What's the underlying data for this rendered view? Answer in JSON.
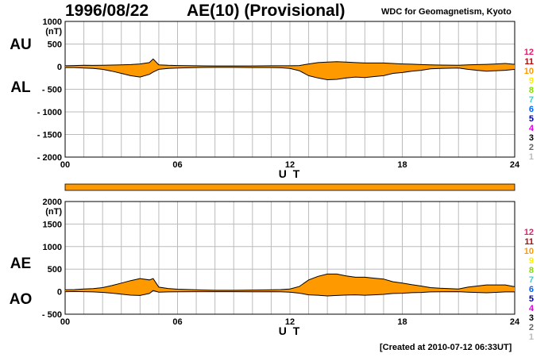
{
  "header": {
    "date": "1996/08/22",
    "title": "AE(10) (Provisional)",
    "credit": "WDC for Geomagnetism, Kyoto",
    "created": "[Created at 2010-07-12 06:33UT]"
  },
  "legend_levels": [
    "12",
    "11",
    "10",
    "9",
    "8",
    "7",
    "6",
    "5",
    "4",
    "3",
    "2",
    "1"
  ],
  "legend_colors": [
    "#e0206a",
    "#cc0000",
    "#ff9900",
    "#ffee00",
    "#88dd00",
    "#44cccc",
    "#0066ff",
    "#0000aa",
    "#dd00dd",
    "#000000",
    "#666666",
    "#bbbbbb"
  ],
  "colors": {
    "fill": "#ff9900",
    "line": "#000000",
    "grid": "#bbbbbb"
  },
  "chart_data": [
    {
      "type": "area",
      "panel": "top",
      "left_labels": [
        "AU",
        "AL"
      ],
      "xlabel": "U T",
      "yunit": "(nT)",
      "xlim": [
        0,
        24
      ],
      "ylim": [
        -2000,
        1000
      ],
      "xticks": [
        0,
        6,
        12,
        18,
        24
      ],
      "xtick_labels": [
        "00",
        "06",
        "12",
        "18",
        "24"
      ],
      "yticks": [
        1000,
        500,
        0,
        -500,
        -1000,
        -1500,
        -2000
      ],
      "ytick_labels": [
        "1000",
        "500",
        "0",
        "- 500",
        "- 1000",
        "- 1500",
        "- 2000"
      ],
      "x": [
        0,
        0.5,
        1,
        1.5,
        2,
        2.5,
        3,
        3.5,
        4,
        4.5,
        4.7,
        5,
        5.5,
        6,
        7,
        8,
        9,
        10,
        11,
        11.5,
        12,
        12.5,
        13,
        13.5,
        14,
        14.5,
        15,
        15.5,
        16,
        16.5,
        17,
        17.5,
        18,
        18.5,
        19,
        19.5,
        20,
        21,
        21.5,
        22,
        22.5,
        23,
        23.5,
        24
      ],
      "series": [
        {
          "name": "AU",
          "values": [
            20,
            25,
            30,
            28,
            30,
            35,
            40,
            45,
            60,
            90,
            170,
            40,
            30,
            25,
            20,
            15,
            15,
            15,
            20,
            20,
            20,
            25,
            60,
            90,
            100,
            110,
            100,
            90,
            80,
            80,
            80,
            70,
            60,
            55,
            45,
            40,
            35,
            30,
            40,
            45,
            50,
            60,
            70,
            50
          ]
        },
        {
          "name": "AL",
          "values": [
            -20,
            -20,
            -30,
            -40,
            -60,
            -100,
            -150,
            -200,
            -230,
            -170,
            -120,
            -60,
            -40,
            -30,
            -20,
            -15,
            -15,
            -20,
            -20,
            -25,
            -40,
            -90,
            -200,
            -250,
            -290,
            -280,
            -250,
            -230,
            -240,
            -220,
            -200,
            -150,
            -130,
            -100,
            -80,
            -50,
            -40,
            -30,
            -60,
            -80,
            -100,
            -90,
            -80,
            -60
          ]
        }
      ]
    },
    {
      "type": "area",
      "panel": "bottom",
      "left_labels": [
        "AE",
        "AO"
      ],
      "xlabel": "U T",
      "yunit": "(nT)",
      "xlim": [
        0,
        24
      ],
      "ylim": [
        -500,
        2000
      ],
      "xticks": [
        0,
        6,
        12,
        18,
        24
      ],
      "xtick_labels": [
        "00",
        "06",
        "12",
        "18",
        "24"
      ],
      "yticks": [
        2000,
        1500,
        1000,
        500,
        0,
        -500
      ],
      "ytick_labels": [
        "2000",
        "1500",
        "1000",
        "500",
        "0",
        "- 500"
      ],
      "x": [
        0,
        0.5,
        1,
        1.5,
        2,
        2.5,
        3,
        3.5,
        4,
        4.5,
        4.7,
        5,
        5.5,
        6,
        7,
        8,
        9,
        10,
        11,
        11.5,
        12,
        12.5,
        13,
        13.5,
        14,
        14.5,
        15,
        15.5,
        16,
        16.5,
        17,
        17.5,
        18,
        18.5,
        19,
        19.5,
        20,
        21,
        21.5,
        22,
        22.5,
        23,
        23.5,
        24
      ],
      "series": [
        {
          "name": "AE",
          "values": [
            40,
            45,
            60,
            68,
            90,
            135,
            190,
            245,
            290,
            260,
            290,
            100,
            70,
            55,
            40,
            30,
            30,
            35,
            40,
            45,
            60,
            115,
            260,
            340,
            390,
            390,
            350,
            320,
            320,
            300,
            280,
            220,
            190,
            155,
            125,
            90,
            75,
            60,
            100,
            125,
            150,
            150,
            150,
            110
          ]
        },
        {
          "name": "AO",
          "values": [
            0,
            3,
            0,
            -6,
            -15,
            -33,
            -55,
            -78,
            -85,
            -40,
            25,
            -10,
            -5,
            -3,
            0,
            0,
            0,
            -3,
            0,
            -3,
            -10,
            -33,
            -70,
            -80,
            -95,
            -85,
            -75,
            -70,
            -80,
            -70,
            -60,
            -40,
            -35,
            -23,
            -18,
            -5,
            -3,
            0,
            -10,
            -18,
            -25,
            -15,
            -5,
            -5
          ]
        }
      ]
    }
  ]
}
